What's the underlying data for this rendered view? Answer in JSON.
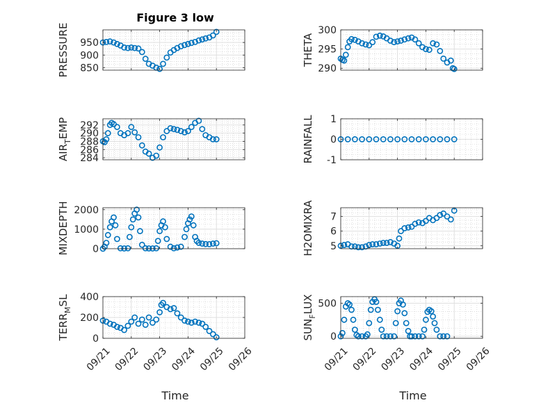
{
  "figure": {
    "title": "Figure 3 low",
    "xlabel": "Time"
  },
  "colors": {
    "marker": "#0072BD",
    "axis": "#262626",
    "grid": "#dfdfdf",
    "minor_grid": "#c8c8c8"
  },
  "chart_data": [
    {
      "type": "scatter",
      "panel": "pressure",
      "ylabel": "PRESSURE",
      "xlim": [
        "09/21",
        "09/26"
      ],
      "xticks": [
        "09/21",
        "09/22",
        "09/23",
        "09/24",
        "09/25",
        "09/26"
      ],
      "show_xticklabels": false,
      "ylim": [
        840,
        1000
      ],
      "yticks": [
        850,
        900,
        950
      ],
      "grid": true,
      "x": [
        21.0,
        21.12,
        21.25,
        21.38,
        21.5,
        21.62,
        21.75,
        21.88,
        22.0,
        22.12,
        22.25,
        22.38,
        22.5,
        22.62,
        22.75,
        22.88,
        23.0,
        23.12,
        23.25,
        23.38,
        23.5,
        23.62,
        23.75,
        23.88,
        24.0,
        24.12,
        24.25,
        24.38,
        24.5,
        24.62,
        24.75,
        24.88,
        25.0
      ],
      "y": [
        950,
        952,
        954,
        950,
        944,
        938,
        930,
        928,
        930,
        928,
        926,
        912,
        885,
        865,
        858,
        850,
        845,
        865,
        890,
        910,
        920,
        928,
        935,
        940,
        944,
        948,
        952,
        958,
        962,
        966,
        970,
        978,
        992
      ]
    },
    {
      "type": "scatter",
      "panel": "theta",
      "ylabel": "THETA",
      "xlim": [
        "09/21",
        "09/26"
      ],
      "xticks": [
        "09/21",
        "09/22",
        "09/23",
        "09/24",
        "09/25",
        "09/26"
      ],
      "show_xticklabels": false,
      "ylim": [
        289.5,
        300
      ],
      "yticks": [
        290,
        295,
        300
      ],
      "grid": true,
      "x": [
        21.0,
        21.06,
        21.12,
        21.18,
        21.25,
        21.31,
        21.38,
        21.5,
        21.62,
        21.75,
        21.88,
        22.0,
        22.12,
        22.25,
        22.38,
        22.5,
        22.62,
        22.75,
        22.88,
        23.0,
        23.12,
        23.25,
        23.38,
        23.5,
        23.62,
        23.75,
        23.88,
        24.0,
        24.12,
        24.25,
        24.38,
        24.5,
        24.62,
        24.75,
        24.88,
        24.95,
        25.0
      ],
      "y": [
        292.5,
        292.2,
        292.0,
        293.5,
        295.5,
        297,
        297.6,
        297.4,
        297.0,
        296.5,
        296.2,
        296.0,
        296.8,
        298.2,
        298.5,
        298.3,
        297.8,
        297.2,
        296.8,
        297.0,
        297.2,
        297.5,
        297.8,
        298.0,
        297.5,
        296.5,
        295.5,
        295.0,
        294.8,
        296.5,
        296.2,
        294.5,
        292.5,
        291.5,
        292.0,
        290.0,
        289.8
      ]
    },
    {
      "type": "scatter",
      "panel": "air_temp",
      "ylabel": "AIR_TEMP",
      "xlim": [
        "09/21",
        "09/26"
      ],
      "xticks": [
        "09/21",
        "09/22",
        "09/23",
        "09/24",
        "09/25",
        "09/26"
      ],
      "show_xticklabels": false,
      "ylim": [
        283.5,
        293.5
      ],
      "yticks": [
        284,
        286,
        288,
        290,
        292
      ],
      "grid": true,
      "x": [
        21.0,
        21.06,
        21.12,
        21.18,
        21.25,
        21.31,
        21.38,
        21.5,
        21.62,
        21.75,
        21.88,
        22.0,
        22.12,
        22.25,
        22.38,
        22.5,
        22.62,
        22.75,
        22.88,
        23.0,
        23.12,
        23.25,
        23.38,
        23.5,
        23.62,
        23.75,
        23.88,
        24.0,
        24.12,
        24.25,
        24.38,
        24.5,
        24.62,
        24.75,
        24.88,
        25.0
      ],
      "y": [
        288,
        287.8,
        288.5,
        290,
        292,
        292.5,
        292.2,
        291.5,
        290.0,
        289.5,
        290.0,
        291.5,
        290.2,
        289.0,
        287.0,
        285.5,
        285.0,
        284.0,
        284.5,
        286.5,
        289.0,
        290.5,
        291.2,
        291.0,
        290.8,
        290.5,
        290.2,
        290.5,
        291.5,
        292.5,
        293.0,
        291.0,
        289.5,
        289.0,
        288.5,
        288.5
      ]
    },
    {
      "type": "scatter",
      "panel": "rainfall",
      "ylabel": "RAINFALL",
      "xlim": [
        "09/21",
        "09/26"
      ],
      "xticks": [
        "09/21",
        "09/22",
        "09/23",
        "09/24",
        "09/25",
        "09/26"
      ],
      "show_xticklabels": false,
      "ylim": [
        -1,
        1
      ],
      "yticks": [
        -1,
        0,
        1
      ],
      "grid": true,
      "x": [
        21.0,
        21.25,
        21.5,
        21.75,
        22.0,
        22.25,
        22.5,
        22.75,
        23.0,
        23.25,
        23.5,
        23.75,
        24.0,
        24.25,
        24.5,
        24.75,
        25.0
      ],
      "y": [
        0,
        0,
        0,
        0,
        0,
        0,
        0,
        0,
        0,
        0,
        0,
        0,
        0,
        0,
        0,
        0,
        0
      ]
    },
    {
      "type": "scatter",
      "panel": "mixdepth",
      "ylabel": "MIXDEPTH",
      "xlim": [
        "09/21",
        "09/26"
      ],
      "xticks": [
        "09/21",
        "09/22",
        "09/23",
        "09/24",
        "09/25",
        "09/26"
      ],
      "show_xticklabels": false,
      "ylim": [
        0,
        2100
      ],
      "yticks": [
        0,
        1000,
        2000
      ],
      "grid": true,
      "x": [
        21.0,
        21.06,
        21.12,
        21.18,
        21.25,
        21.31,
        21.38,
        21.44,
        21.5,
        21.62,
        21.75,
        21.88,
        21.94,
        22.0,
        22.06,
        22.12,
        22.19,
        22.25,
        22.31,
        22.38,
        22.5,
        22.62,
        22.75,
        22.88,
        22.94,
        23.0,
        23.06,
        23.12,
        23.19,
        23.25,
        23.38,
        23.5,
        23.62,
        23.75,
        23.88,
        23.94,
        24.0,
        24.06,
        24.12,
        24.19,
        24.25,
        24.31,
        24.38,
        24.5,
        24.62,
        24.75,
        24.88,
        25.0
      ],
      "y": [
        0,
        100,
        300,
        700,
        1100,
        1400,
        1600,
        1200,
        500,
        20,
        10,
        20,
        600,
        1100,
        1500,
        1800,
        2000,
        1600,
        900,
        200,
        20,
        15,
        10,
        20,
        400,
        900,
        1200,
        1400,
        1100,
        500,
        100,
        20,
        60,
        100,
        600,
        1000,
        1300,
        1500,
        1650,
        1200,
        600,
        400,
        300,
        260,
        240,
        230,
        260,
        280
      ]
    },
    {
      "type": "scatter",
      "panel": "h2omixra",
      "ylabel": "H2OMIXRA",
      "xlim": [
        "09/21",
        "09/26"
      ],
      "xticks": [
        "09/21",
        "09/22",
        "09/23",
        "09/24",
        "09/25",
        "09/26"
      ],
      "show_xticklabels": false,
      "ylim": [
        4.8,
        7.6
      ],
      "yticks": [
        5,
        6,
        7
      ],
      "grid": true,
      "x": [
        21.0,
        21.12,
        21.25,
        21.38,
        21.5,
        21.62,
        21.75,
        21.88,
        22.0,
        22.12,
        22.25,
        22.38,
        22.5,
        22.62,
        22.75,
        22.88,
        23.0,
        23.06,
        23.12,
        23.25,
        23.38,
        23.5,
        23.62,
        23.75,
        23.88,
        24.0,
        24.12,
        24.25,
        24.38,
        24.5,
        24.62,
        24.75,
        24.88,
        25.0
      ],
      "y": [
        5.0,
        5.05,
        5.1,
        4.95,
        4.95,
        4.9,
        4.9,
        4.95,
        5.05,
        5.1,
        5.1,
        5.15,
        5.2,
        5.2,
        5.25,
        5.15,
        5.0,
        5.5,
        6.0,
        6.2,
        6.25,
        6.3,
        6.5,
        6.6,
        6.55,
        6.7,
        6.9,
        6.75,
        6.9,
        7.1,
        7.2,
        7.0,
        6.8,
        7.4
      ]
    },
    {
      "type": "scatter",
      "panel": "terr_msl",
      "ylabel": "TERR_MSL",
      "xlim": [
        "09/21",
        "09/26"
      ],
      "xticks": [
        "09/21",
        "09/22",
        "09/23",
        "09/24",
        "09/25",
        "09/26"
      ],
      "show_xticklabels": true,
      "ylim": [
        0,
        400
      ],
      "yticks": [
        0,
        200,
        400
      ],
      "grid": true,
      "x": [
        21.0,
        21.12,
        21.25,
        21.38,
        21.5,
        21.62,
        21.75,
        21.88,
        22.0,
        22.12,
        22.25,
        22.38,
        22.5,
        22.62,
        22.75,
        22.88,
        23.0,
        23.06,
        23.12,
        23.25,
        23.38,
        23.5,
        23.62,
        23.75,
        23.88,
        24.0,
        24.12,
        24.25,
        24.38,
        24.5,
        24.62,
        24.75,
        24.88,
        25.0
      ],
      "y": [
        170,
        160,
        140,
        130,
        110,
        100,
        80,
        120,
        160,
        200,
        140,
        180,
        130,
        200,
        150,
        180,
        250,
        320,
        340,
        300,
        280,
        290,
        240,
        200,
        170,
        160,
        150,
        160,
        150,
        140,
        110,
        70,
        40,
        10
      ]
    },
    {
      "type": "scatter",
      "panel": "sun_flux",
      "ylabel": "SUN_FLUX",
      "xlim": [
        "09/21",
        "09/26"
      ],
      "xticks": [
        "09/21",
        "09/22",
        "09/23",
        "09/24",
        "09/25",
        "09/26"
      ],
      "show_xticklabels": true,
      "ylim": [
        -30,
        600
      ],
      "yticks": [
        0,
        500
      ],
      "grid": true,
      "x": [
        21.0,
        21.06,
        21.12,
        21.18,
        21.25,
        21.31,
        21.38,
        21.44,
        21.5,
        21.56,
        21.62,
        21.75,
        21.88,
        21.94,
        22.0,
        22.06,
        22.12,
        22.19,
        22.25,
        22.31,
        22.38,
        22.44,
        22.5,
        22.62,
        22.75,
        22.88,
        22.94,
        23.0,
        23.06,
        23.12,
        23.19,
        23.25,
        23.31,
        23.38,
        23.44,
        23.5,
        23.62,
        23.75,
        23.88,
        23.94,
        24.0,
        24.06,
        24.12,
        24.19,
        24.25,
        24.31,
        24.38,
        24.5,
        24.62,
        24.75
      ],
      "y": [
        0,
        50,
        250,
        450,
        500,
        480,
        400,
        250,
        100,
        20,
        0,
        0,
        0,
        30,
        200,
        400,
        520,
        560,
        520,
        400,
        250,
        100,
        0,
        0,
        0,
        0,
        200,
        380,
        500,
        540,
        480,
        350,
        200,
        80,
        0,
        0,
        0,
        0,
        0,
        100,
        250,
        370,
        400,
        380,
        300,
        200,
        100,
        0,
        0,
        0
      ]
    }
  ]
}
